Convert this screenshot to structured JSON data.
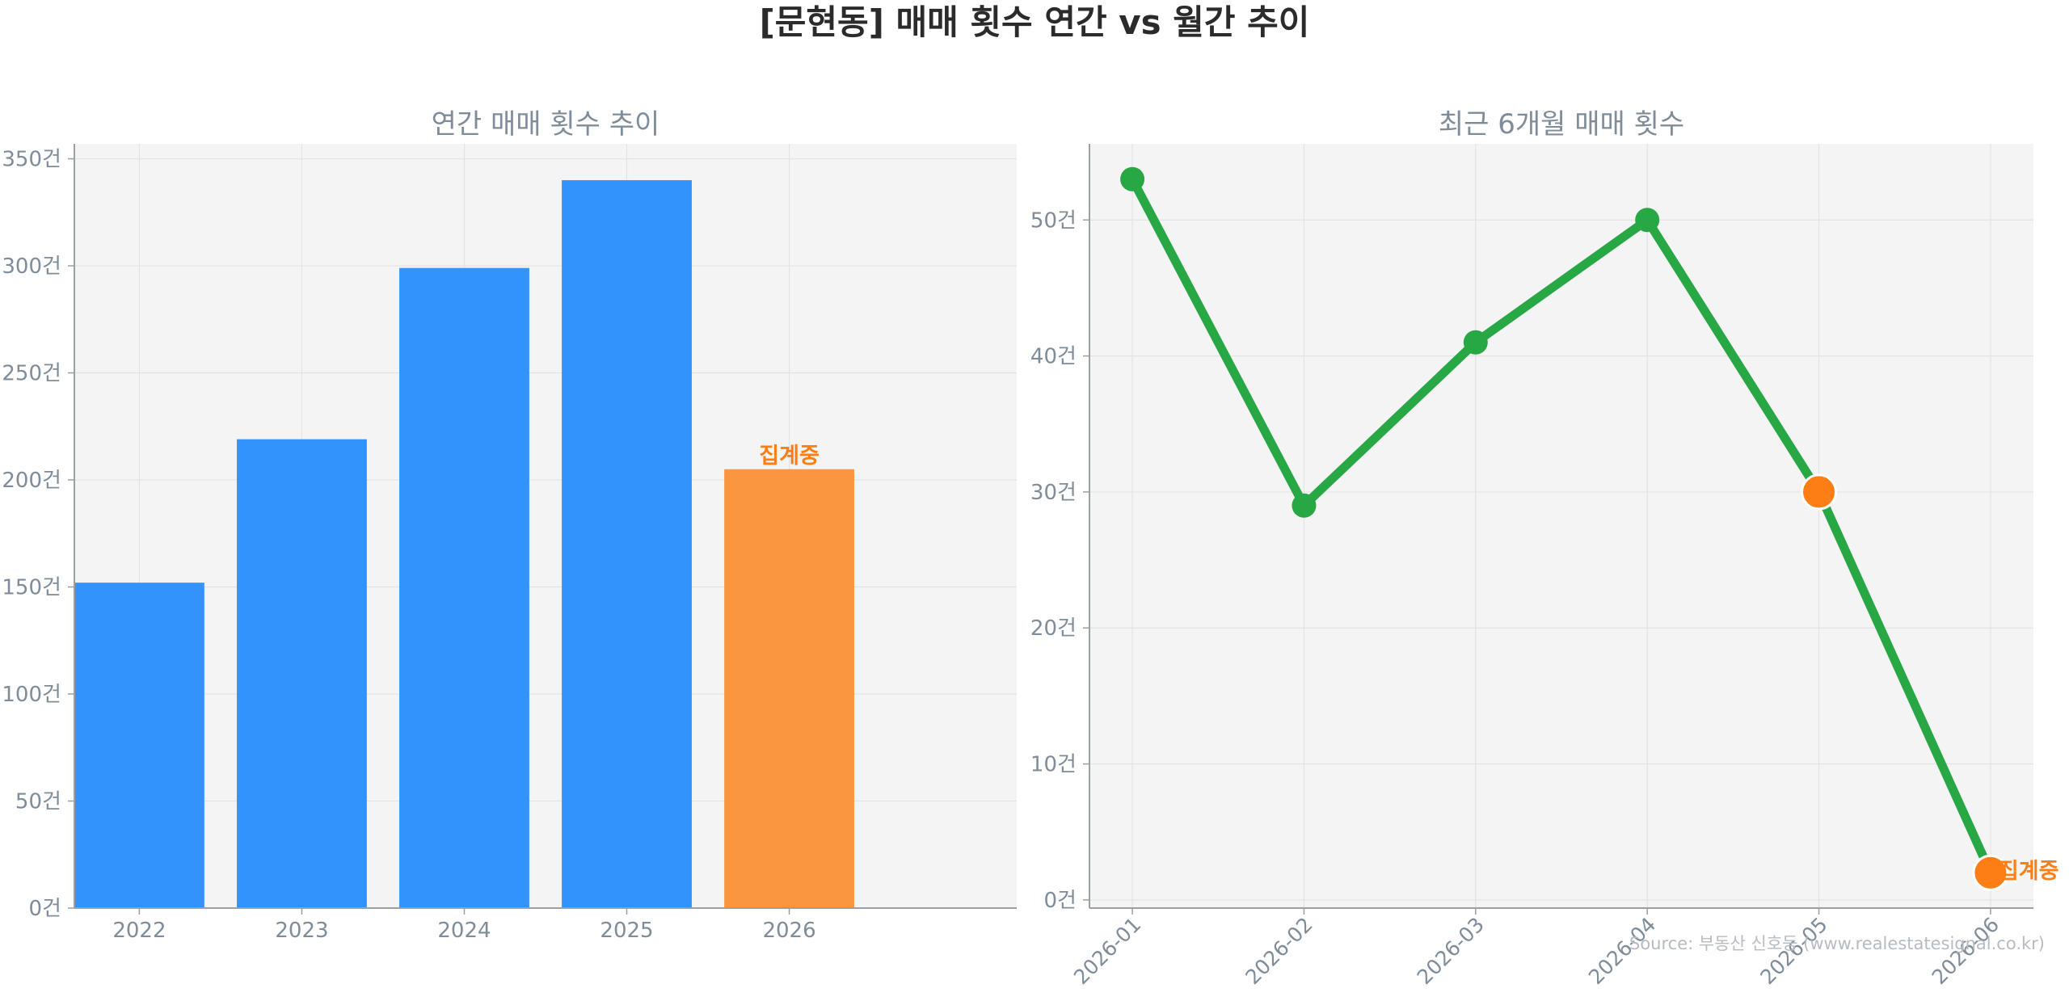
{
  "figure": {
    "title": "[문현동] 매매 횟수 연간 vs 월간 추이",
    "source": "Source: 부동산 신호등 (www.realestatesignal.co.kr)"
  },
  "colors": {
    "bar": "#3193fb",
    "bar_partial": "#fa9640",
    "line": "#28a745",
    "marker_partial": "#fd7e14",
    "partial_label": "#fd7e14",
    "plot_bg": "#f4f4f4",
    "axis_text": "#7f8c99",
    "title_text": "#2b2b2b"
  },
  "chart_data": [
    {
      "type": "bar",
      "title": "연간 매매 횟수 추이",
      "categories": [
        "2022",
        "2023",
        "2024",
        "2025",
        "2026"
      ],
      "values": [
        152,
        219,
        299,
        340,
        205
      ],
      "ylim": [
        0,
        357
      ],
      "yticks": [
        0,
        50,
        100,
        150,
        200,
        250,
        300,
        350
      ],
      "ytick_suffix": "건",
      "grid": true,
      "partial_index": 4,
      "partial_label": "집계중"
    },
    {
      "type": "line",
      "title": "최근 6개월 매매 횟수",
      "categories": [
        "2026-01",
        "2026-02",
        "2026-03",
        "2026-04",
        "2026-05",
        "2026-06"
      ],
      "values": [
        53,
        29,
        41,
        50,
        30,
        2
      ],
      "ylim": [
        -0.6,
        55.6
      ],
      "yticks": [
        0,
        10,
        20,
        30,
        40,
        50
      ],
      "ytick_suffix": "건",
      "grid": true,
      "partial_indices": [
        4,
        5
      ],
      "partial_label": "집계중",
      "partial_label_index": 5
    }
  ]
}
